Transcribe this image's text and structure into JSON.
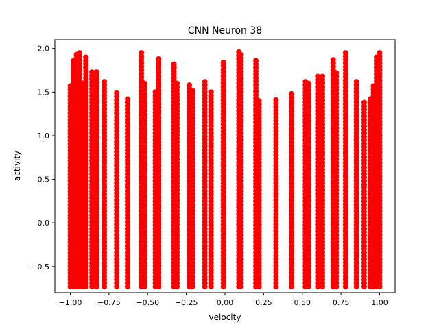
{
  "chart_data": {
    "type": "scatter",
    "title": "CNN Neuron 38",
    "xlabel": "velocity",
    "ylabel": "activity",
    "xlim": [
      -1.1,
      1.1
    ],
    "ylim": [
      -0.8,
      2.1
    ],
    "xticks": [
      -1.0,
      -0.75,
      -0.5,
      -0.25,
      0.0,
      0.25,
      0.5,
      0.75,
      1.0
    ],
    "xtick_labels": [
      "−1.00",
      "−0.75",
      "−0.50",
      "−0.25",
      "0.00",
      "0.25",
      "0.50",
      "0.75",
      "1.00"
    ],
    "yticks": [
      -0.5,
      0.0,
      0.5,
      1.0,
      1.5,
      2.0
    ],
    "ytick_labels": [
      "−0.5",
      "0.0",
      "0.5",
      "1.0",
      "1.5",
      "2.0"
    ],
    "grid": false,
    "marker_color": "#ff0000",
    "series": [
      {
        "columns": [
          {
            "x": -1.0,
            "ymin": -0.73,
            "ymax": 1.57
          },
          {
            "x": -0.98,
            "ymin": -0.73,
            "ymax": 1.86
          },
          {
            "x": -0.96,
            "ymin": -0.73,
            "ymax": 1.93
          },
          {
            "x": -0.94,
            "ymin": -0.73,
            "ymax": 1.95
          },
          {
            "x": -0.92,
            "ymin": -0.73,
            "ymax": 1.6
          },
          {
            "x": -0.9,
            "ymin": -0.73,
            "ymax": 1.9
          },
          {
            "x": -0.86,
            "ymin": -0.73,
            "ymax": 1.73
          },
          {
            "x": -0.83,
            "ymin": -0.73,
            "ymax": 1.73
          },
          {
            "x": -0.78,
            "ymin": -0.73,
            "ymax": 1.62
          },
          {
            "x": -0.7,
            "ymin": -0.73,
            "ymax": 1.49
          },
          {
            "x": -0.63,
            "ymin": -0.73,
            "ymax": 1.42
          },
          {
            "x": -0.54,
            "ymin": -0.73,
            "ymax": 1.95
          },
          {
            "x": -0.52,
            "ymin": -0.73,
            "ymax": 1.6
          },
          {
            "x": -0.45,
            "ymin": -0.73,
            "ymax": 1.5
          },
          {
            "x": -0.43,
            "ymin": -0.73,
            "ymax": 1.88
          },
          {
            "x": -0.33,
            "ymin": -0.73,
            "ymax": 1.82
          },
          {
            "x": -0.31,
            "ymin": -0.73,
            "ymax": 1.6
          },
          {
            "x": -0.23,
            "ymin": -0.73,
            "ymax": 1.58
          },
          {
            "x": -0.21,
            "ymin": -0.73,
            "ymax": 1.52
          },
          {
            "x": -0.13,
            "ymin": -0.73,
            "ymax": 1.62
          },
          {
            "x": -0.09,
            "ymin": -0.73,
            "ymax": 1.5
          },
          {
            "x": -0.01,
            "ymin": -0.73,
            "ymax": 1.84
          },
          {
            "x": 0.09,
            "ymin": -0.73,
            "ymax": 1.96
          },
          {
            "x": 0.1,
            "ymin": -0.73,
            "ymax": 1.93
          },
          {
            "x": 0.2,
            "ymin": -0.73,
            "ymax": 1.86
          },
          {
            "x": 0.22,
            "ymin": -0.73,
            "ymax": 1.4
          },
          {
            "x": 0.33,
            "ymin": -0.73,
            "ymax": 1.41
          },
          {
            "x": 0.43,
            "ymin": -0.73,
            "ymax": 1.48
          },
          {
            "x": 0.52,
            "ymin": -0.73,
            "ymax": 1.62
          },
          {
            "x": 0.54,
            "ymin": -0.73,
            "ymax": 1.6
          },
          {
            "x": 0.6,
            "ymin": -0.73,
            "ymax": 1.68
          },
          {
            "x": 0.63,
            "ymin": -0.73,
            "ymax": 1.68
          },
          {
            "x": 0.7,
            "ymin": -0.73,
            "ymax": 1.87
          },
          {
            "x": 0.72,
            "ymin": -0.73,
            "ymax": 1.72
          },
          {
            "x": 0.78,
            "ymin": -0.73,
            "ymax": 1.95
          },
          {
            "x": 0.85,
            "ymin": -0.73,
            "ymax": 1.62
          },
          {
            "x": 0.9,
            "ymin": -0.73,
            "ymax": 1.38
          },
          {
            "x": 0.94,
            "ymin": -0.73,
            "ymax": 1.42
          },
          {
            "x": 0.96,
            "ymin": -0.73,
            "ymax": 1.57
          },
          {
            "x": 0.98,
            "ymin": -0.73,
            "ymax": 1.9
          },
          {
            "x": 1.0,
            "ymin": -0.73,
            "ymax": 1.95
          }
        ]
      }
    ]
  }
}
